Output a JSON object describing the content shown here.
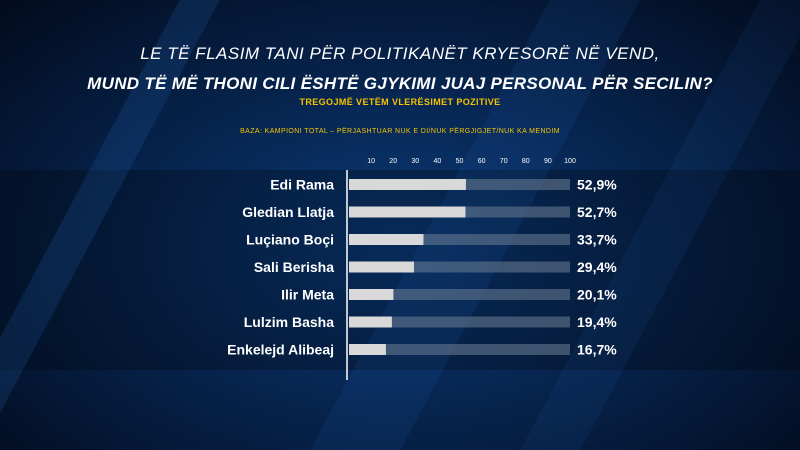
{
  "header": {
    "question_line1": "LE TË FLASIM TANI PËR POLITIKANËT KRYESORË NË VEND,",
    "question_line2": "MUND TË MË THONI CILI ËSHTË GJYKIMI JUAJ PERSONAL PËR SECILIN?",
    "subtitle": "TREGOJMË VETËM VLERËSIMET POZITIVE",
    "base_note": "BAZA: KAMPIONI TOTAL – PËRJASHTUAR NUK E DI/NUK PËRGJIGJET/NUK KA MENDIM"
  },
  "colors": {
    "bar": "#d9d9d9",
    "track": "#6e7f95",
    "accent": "#f5c400"
  },
  "chart_data": {
    "type": "bar",
    "orientation": "horizontal",
    "categories": [
      "Edi Rama",
      "Gledian Llatja",
      "Luçiano Boçi",
      "Sali Berisha",
      "Ilir Meta",
      "Lulzim Basha",
      "Enkelejd Alibeaj"
    ],
    "values": [
      52.9,
      52.7,
      33.7,
      29.4,
      20.1,
      19.4,
      16.7
    ],
    "value_labels": [
      "52,9%",
      "52,7%",
      "33,7%",
      "29,4%",
      "20,1%",
      "19,4%",
      "16,7%"
    ],
    "xticks": [
      10,
      20,
      30,
      40,
      50,
      60,
      70,
      80,
      90,
      100
    ],
    "xlim": [
      0,
      100
    ]
  }
}
